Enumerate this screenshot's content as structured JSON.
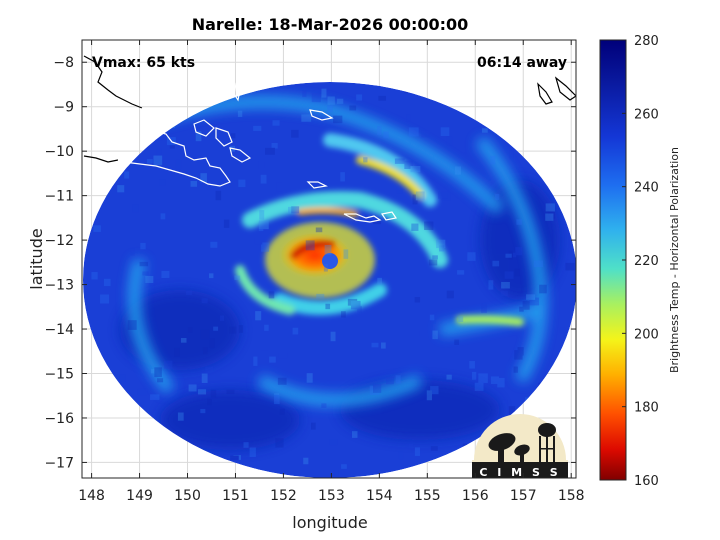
{
  "title": "Narelle: 18-Mar-2026 00:00:00",
  "vmax_text": "Vmax: 65 kts",
  "time_away_text": "06:14 away",
  "logo_text": "C I M S S",
  "map_data": {
    "xlabel": "longitude",
    "ylabel": "latitude",
    "xlim": [
      147.8,
      158.1
    ],
    "ylim": [
      -17.35,
      -7.5
    ],
    "xticks": [
      148,
      149,
      150,
      151,
      152,
      153,
      154,
      155,
      156,
      157,
      158
    ],
    "yticks": [
      -8,
      -9,
      -10,
      -11,
      -12,
      -13,
      -14,
      -15,
      -16,
      -17
    ],
    "swath_center": [
      152.8,
      -12.45
    ],
    "swath_radius_lon": 5.6,
    "eye_center": [
      152.85,
      -12.5
    ],
    "grid": true
  },
  "colorbar": {
    "label": "Brightness Temp - Horizontal Polarization",
    "min": 160,
    "max": 280,
    "ticks": [
      280,
      260,
      240,
      220,
      200,
      180,
      160
    ]
  },
  "colors": {
    "background_blue": "#1a3fd6",
    "eye_red": "#cc0000"
  }
}
